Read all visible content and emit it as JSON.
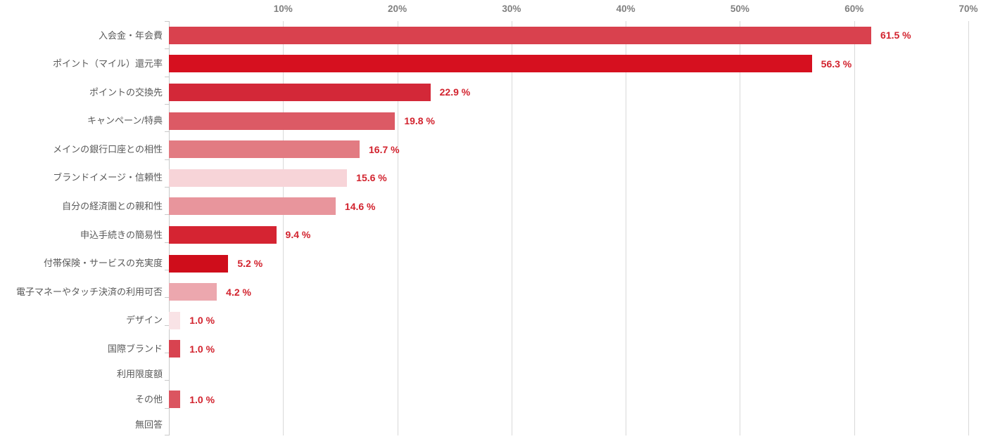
{
  "chart_data": {
    "type": "bar",
    "orientation": "horizontal",
    "title": "",
    "categories": [
      "入会金・年会費",
      "ポイント（マイル）還元率",
      "ポイントの交換先",
      "キャンペーン/特典",
      "メインの銀行口座との相性",
      "ブランドイメージ・信頼性",
      "自分の経済圏との親和性",
      "申込手続きの簡易性",
      "付帯保険・サービスの充実度",
      "電子マネーやタッチ決済の利用可否",
      "デザイン",
      "国際ブランド",
      "利用限度額",
      "その他",
      "無回答"
    ],
    "values": [
      61.5,
      56.3,
      22.9,
      19.8,
      16.7,
      15.6,
      14.6,
      9.4,
      5.2,
      4.2,
      1.0,
      1.0,
      0,
      1.0,
      0
    ],
    "value_labels": [
      "61.5 %",
      "56.3 %",
      "22.9 %",
      "19.8 %",
      "16.7 %",
      "15.6 %",
      "14.6 %",
      "9.4 %",
      "5.2 %",
      "4.2 %",
      "1.0 %",
      "1.0 %",
      "",
      "1.0 %",
      ""
    ],
    "bar_colors": [
      "#D9414E",
      "#D6101F",
      "#D32838",
      "#DC5A65",
      "#E27B82",
      "#F7D4D8",
      "#E8959C",
      "#D52432",
      "#CF0D1B",
      "#ECA7AE",
      "#F9E3E6",
      "#D84350",
      "#CCCCCC",
      "#DB5560",
      "#CCCCCC"
    ],
    "xlim": [
      0,
      70
    ],
    "x_tick_values": [
      10,
      20,
      30,
      40,
      50,
      60,
      70
    ],
    "x_tick_labels": [
      "10%",
      "20%",
      "30%",
      "40%",
      "50%",
      "60%",
      "70%"
    ],
    "grid": true,
    "legend": false,
    "xlabel": "",
    "ylabel": ""
  },
  "styles": {
    "value_label_color": "#D2232E",
    "axis_tick_label_color": "#808080",
    "category_label_color": "#595959",
    "gridline_color": "#D9D9D9",
    "axis_line_color": "#C9C9C9"
  }
}
